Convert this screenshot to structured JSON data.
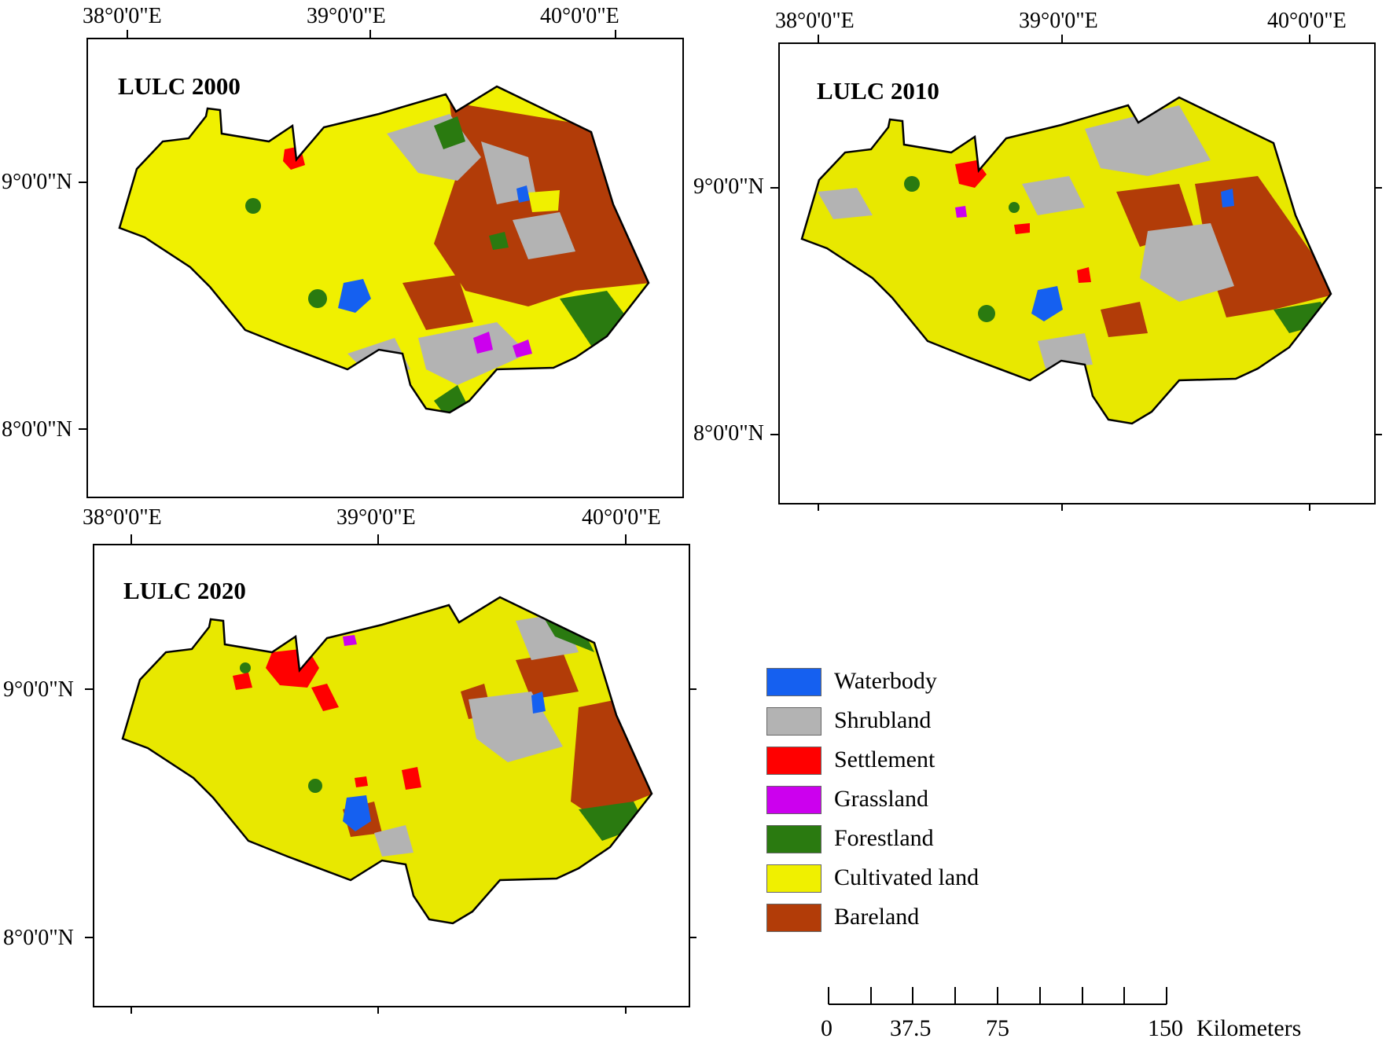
{
  "panels": [
    {
      "title": "LULC 2000",
      "top_labels": [
        "38°0'0\"E",
        "39°0'0\"E",
        "40°0'0\"E"
      ],
      "left_labels": [
        "9°0'0\"N",
        "8°0'0\"N"
      ]
    },
    {
      "title": "LULC 2010",
      "top_labels": [
        "38°0'0\"E",
        "39°0'0\"E",
        "40°0'0\"E"
      ],
      "left_labels": [
        "9°0'0\"N",
        "8°0'0\"N"
      ]
    },
    {
      "title": "LULC 2020",
      "top_labels": [
        "38°0'0\"E",
        "39°0'0\"E",
        "40°0'0\"E"
      ],
      "left_labels": [
        "9°0'0\"N",
        "8°0'0\"N"
      ]
    }
  ],
  "legend": [
    {
      "label": "Waterbody",
      "color": "#1560f0"
    },
    {
      "label": "Shrubland",
      "color": "#b3b3b3"
    },
    {
      "label": "Settlement",
      "color": "#ff0000"
    },
    {
      "label": "Grassland",
      "color": "#cc00ee"
    },
    {
      "label": "Forestland",
      "color": "#2a7a10"
    },
    {
      "label": "Cultivated land",
      "color": "#f0f000"
    },
    {
      "label": "Bareland",
      "color": "#b23c08"
    }
  ],
  "scale_bar": {
    "labels": [
      "0",
      "37.5",
      "75",
      "150"
    ],
    "unit": "Kilometers"
  }
}
